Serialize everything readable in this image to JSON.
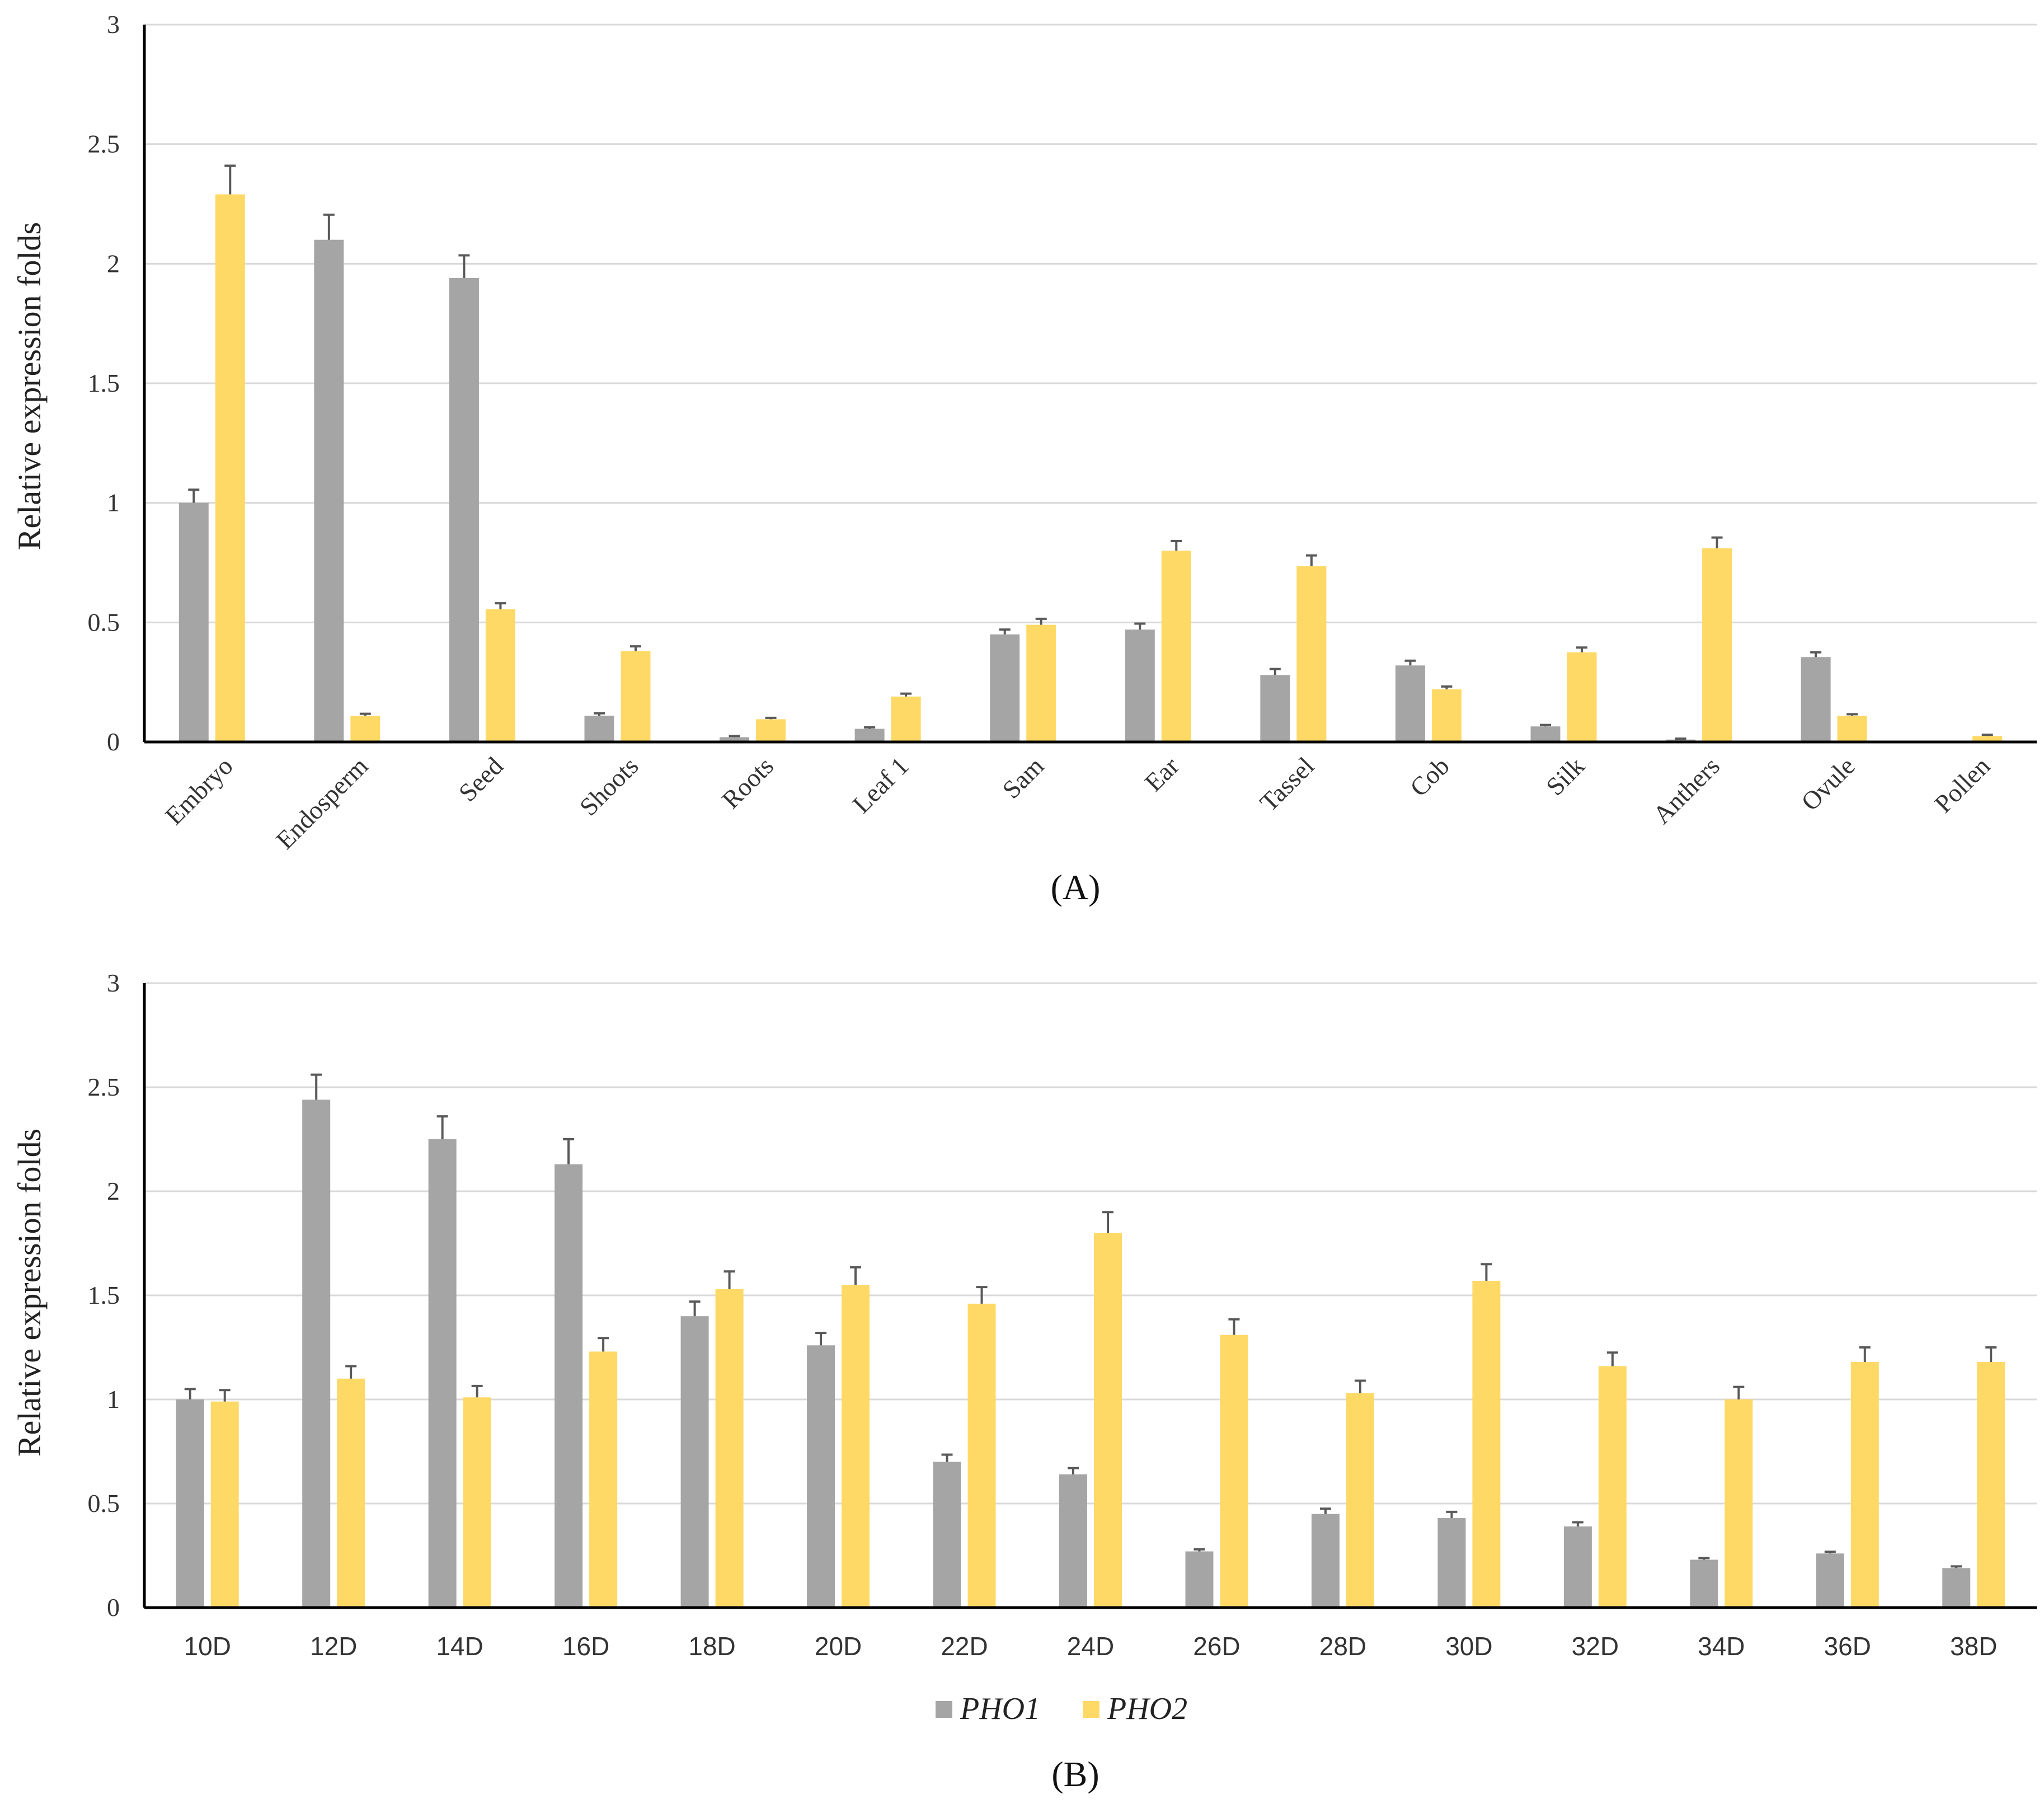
{
  "chart_data": [
    {
      "type": "bar",
      "panel_label": "(A)",
      "ylabel": "Relative expression folds",
      "ylim": [
        0,
        3
      ],
      "yticks": [
        "0",
        "0.5",
        "1",
        "1.5",
        "2",
        "2.5",
        "3"
      ],
      "grid": true,
      "xtick_rotation": "rotated-45",
      "categories": [
        "Embryo",
        "Endosperm",
        "Seed",
        "Shoots",
        "Roots",
        "Leaf 1",
        "Sam",
        "Ear",
        "Tassel",
        "Cob",
        "Silk",
        "Anthers",
        "Ovule",
        "Pollen"
      ],
      "series": [
        {
          "name": "PHO1",
          "color": "#a5a5a5",
          "values": [
            1.0,
            2.1,
            1.94,
            0.11,
            0.02,
            0.055,
            0.45,
            0.47,
            0.28,
            0.32,
            0.065,
            0.01,
            0.355,
            0.0
          ],
          "errors": [
            0.055,
            0.105,
            0.095,
            0.01,
            0.005,
            0.006,
            0.02,
            0.025,
            0.025,
            0.02,
            0.006,
            0.004,
            0.02,
            0.0
          ]
        },
        {
          "name": "PHO2",
          "color": "#ffd966",
          "values": [
            2.29,
            0.11,
            0.555,
            0.38,
            0.095,
            0.19,
            0.49,
            0.8,
            0.735,
            0.22,
            0.375,
            0.81,
            0.11,
            0.025
          ],
          "errors": [
            0.12,
            0.008,
            0.025,
            0.02,
            0.006,
            0.012,
            0.025,
            0.04,
            0.045,
            0.012,
            0.02,
            0.045,
            0.006,
            0.005
          ]
        }
      ]
    },
    {
      "type": "bar",
      "panel_label": "(B)",
      "ylabel": "Relative expression folds",
      "ylim": [
        0,
        3
      ],
      "yticks": [
        "0",
        "0.5",
        "1",
        "1.5",
        "2",
        "2.5",
        "3"
      ],
      "grid": true,
      "legend_position": "bottom",
      "categories": [
        "10D",
        "12D",
        "14D",
        "16D",
        "18D",
        "20D",
        "22D",
        "24D",
        "26D",
        "28D",
        "30D",
        "32D",
        "34D",
        "36D",
        "38D"
      ],
      "series": [
        {
          "name": "PHO1",
          "color": "#a5a5a5",
          "values": [
            1.0,
            2.44,
            2.25,
            2.13,
            1.4,
            1.26,
            0.7,
            0.64,
            0.27,
            0.45,
            0.43,
            0.39,
            0.23,
            0.26,
            0.19
          ],
          "errors": [
            0.05,
            0.12,
            0.11,
            0.12,
            0.07,
            0.06,
            0.035,
            0.03,
            0.01,
            0.025,
            0.03,
            0.02,
            0.008,
            0.008,
            0.008
          ]
        },
        {
          "name": "PHO2",
          "color": "#ffd966",
          "values": [
            0.99,
            1.1,
            1.01,
            1.23,
            1.53,
            1.55,
            1.46,
            1.8,
            1.31,
            1.03,
            1.57,
            1.16,
            1.0,
            1.18,
            1.18
          ],
          "errors": [
            0.055,
            0.06,
            0.055,
            0.065,
            0.085,
            0.085,
            0.08,
            0.1,
            0.075,
            0.06,
            0.08,
            0.065,
            0.06,
            0.07,
            0.07
          ]
        }
      ]
    }
  ]
}
